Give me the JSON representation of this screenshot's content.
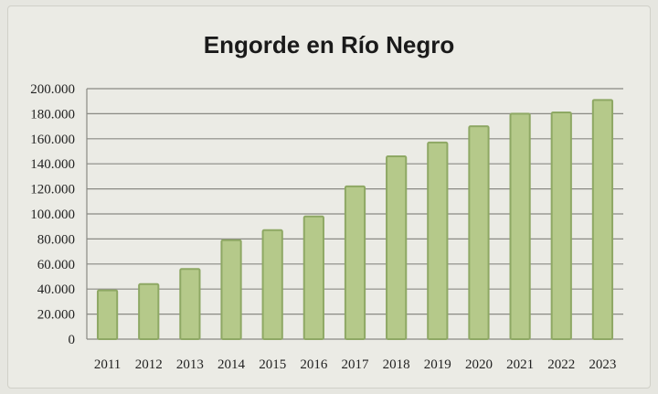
{
  "chart_data": {
    "type": "bar",
    "title": "Engorde en Río Negro",
    "categories": [
      "2011",
      "2012",
      "2013",
      "2014",
      "2015",
      "2016",
      "2017",
      "2018",
      "2019",
      "2020",
      "2021",
      "2022",
      "2023"
    ],
    "values": [
      39000,
      44000,
      56000,
      79000,
      87000,
      98000,
      122000,
      146000,
      157000,
      170000,
      180000,
      181000,
      191000
    ],
    "ylim": [
      0,
      200000
    ],
    "yticks": [
      0,
      20000,
      40000,
      60000,
      80000,
      100000,
      120000,
      140000,
      160000,
      180000,
      200000
    ],
    "ytick_labels": [
      "0",
      "20.000",
      "40.000",
      "60.000",
      "80.000",
      "100.000",
      "120.000",
      "140.000",
      "160.000",
      "180.000",
      "200.000"
    ],
    "xlabel": "",
    "ylabel": "",
    "grid": true,
    "legend": "none",
    "colors": {
      "bar_fill": "#b5c98a",
      "bar_stroke": "#8ea864",
      "grid": "#8a8a84",
      "background": "#ebebe5"
    }
  }
}
